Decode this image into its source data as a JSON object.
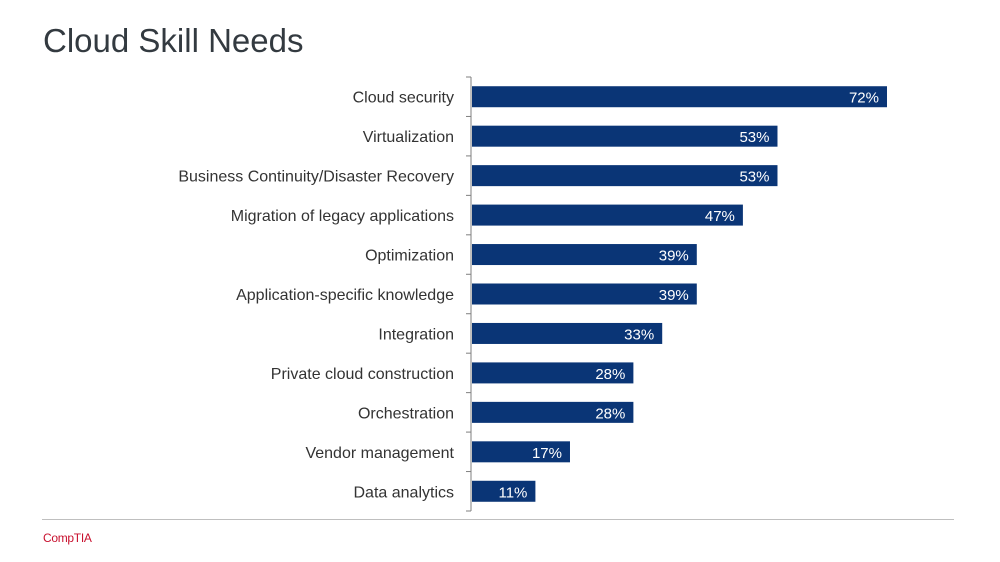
{
  "slide": {
    "title": "Cloud Skill Needs",
    "logo_text": "CompTIA"
  },
  "colors": {
    "bar": "#0a3576",
    "title": "#333a40",
    "logo": "#c8102e",
    "axis": "#7f7f7f"
  },
  "chart_data": {
    "type": "bar",
    "orientation": "horizontal",
    "categories": [
      "Cloud security",
      "Virtualization",
      "Business Continuity/Disaster Recovery",
      "Migration of legacy applications",
      "Optimization",
      "Application-specific knowledge",
      "Integration",
      "Private cloud construction",
      "Orchestration",
      "Vendor management",
      "Data analytics"
    ],
    "values": [
      72,
      53,
      53,
      47,
      39,
      39,
      33,
      28,
      28,
      17,
      11
    ],
    "value_labels": [
      "72%",
      "53%",
      "53%",
      "47%",
      "39%",
      "39%",
      "33%",
      "28%",
      "28%",
      "17%",
      "11%"
    ],
    "unit": "%",
    "title": "Cloud Skill Needs",
    "xlabel": "",
    "ylabel": "",
    "xlim": [
      0,
      72
    ],
    "grid": false,
    "legend": "none"
  }
}
